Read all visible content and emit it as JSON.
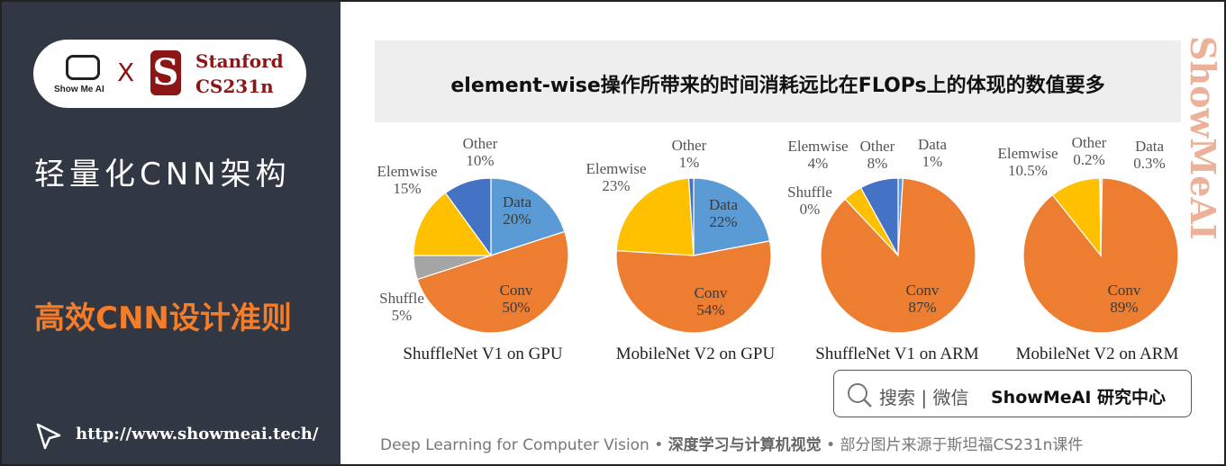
{
  "sidebar": {
    "logo_text": "Show Me AI",
    "x": "X",
    "stanford_line1": "Stanford",
    "stanford_line2": "CS231n",
    "heading": "轻量化CNN架构",
    "subheading": "高效CNN设计准则",
    "url": "http://www.showmeai.tech/"
  },
  "slide": {
    "title": "element-wise操作所带来的时间消耗远比在FLOPs上的体现的数值要多",
    "watermark": "ShowMeAI"
  },
  "colors": {
    "Data": "#5b9bd5",
    "Conv": "#ed7d31",
    "Shuffle": "#a5a5a5",
    "Elemwise": "#ffc000",
    "Other": "#4472c4",
    "sidebar_bg": "#323843",
    "accent": "#f57c28"
  },
  "chart_data": [
    {
      "type": "pie",
      "title": "ShuffleNet V1 on GPU",
      "labels": [
        "Data",
        "Conv",
        "Shuffle",
        "Elemwise",
        "Other"
      ],
      "values": [
        20,
        50,
        5,
        15,
        10
      ],
      "value_labels": [
        "20%",
        "50%",
        "5%",
        "15%",
        "10%"
      ]
    },
    {
      "type": "pie",
      "title": "MobileNet V2 on GPU",
      "labels": [
        "Data",
        "Conv",
        "Elemwise",
        "Other"
      ],
      "values": [
        22,
        54,
        23,
        1
      ],
      "value_labels": [
        "22%",
        "54%",
        "23%",
        "1%"
      ]
    },
    {
      "type": "pie",
      "title": "ShuffleNet V1 on ARM",
      "labels": [
        "Data",
        "Conv",
        "Shuffle",
        "Elemwise",
        "Other"
      ],
      "values": [
        1,
        87,
        0,
        4,
        8
      ],
      "value_labels": [
        "1%",
        "87%",
        "0%",
        "4%",
        "8%"
      ]
    },
    {
      "type": "pie",
      "title": "MobileNet V2 on ARM",
      "labels": [
        "Data",
        "Conv",
        "Elemwise",
        "Other"
      ],
      "values": [
        0.3,
        89,
        10.5,
        0.2
      ],
      "value_labels": [
        "0.3%",
        "89%",
        "10.5%",
        "0.2%"
      ]
    }
  ],
  "search": {
    "icon": "search-icon",
    "text": "搜索 | 微信",
    "brand": "ShowMeAI 研究中心"
  },
  "footer": {
    "part1": "Deep Learning for Computer Vision",
    "sep": " • ",
    "part2": "深度学习与计算机视觉",
    "part3": "部分图片来源于斯坦福CS231n课件"
  }
}
